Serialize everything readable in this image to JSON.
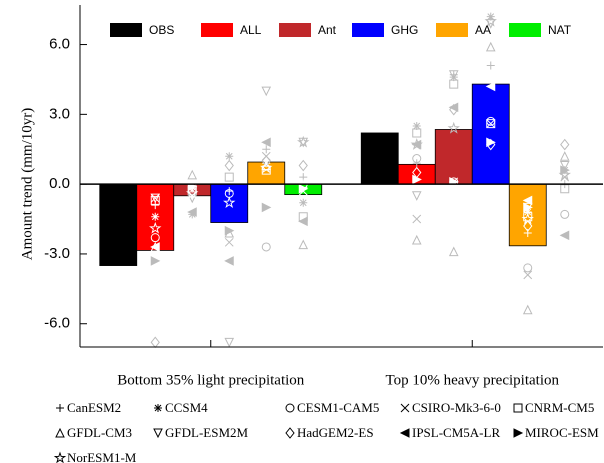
{
  "chart_data": {
    "type": "bar",
    "y_label": "Amount trend (mm/10yr)",
    "categories": [
      "Bottom 35% light precipitation",
      "Top 10% heavy precipitation"
    ],
    "ylim": [
      -7,
      7.7
    ],
    "yticks": [
      {
        "value": 6,
        "label": "6.0"
      },
      {
        "value": 3,
        "label": "3.0"
      },
      {
        "value": 0,
        "label": "0.0"
      },
      {
        "value": -3,
        "label": "-3.0"
      },
      {
        "value": -6,
        "label": "-6.0"
      }
    ],
    "series": [
      {
        "name": "OBS",
        "color": "#000000",
        "values": [
          -3.5,
          2.2
        ]
      },
      {
        "name": "ALL",
        "color": "#ff0000",
        "values": [
          -2.85,
          0.85
        ]
      },
      {
        "name": "Ant",
        "color": "#c0282b",
        "values": [
          -0.5,
          2.35
        ]
      },
      {
        "name": "GHG",
        "color": "#0000ff",
        "values": [
          -1.65,
          4.3
        ]
      },
      {
        "name": "AA",
        "color": "#ffa500",
        "values": [
          0.95,
          -2.65
        ]
      },
      {
        "name": "NAT",
        "color": "#00ee00",
        "values": [
          -0.45,
          null
        ]
      }
    ],
    "model_color": "#bbbbbb",
    "models": [
      {
        "name": "CanESM2",
        "marker": "+",
        "values": [
          [
            -0.9,
            -0.2,
            -0.3,
            1.5,
            0.3
          ],
          [
            0.9,
            4.7,
            5.1,
            -2.1,
            0.0
          ]
        ]
      },
      {
        "name": "CCSM4",
        "marker": "*",
        "values": [
          [
            -1.4,
            -1.3,
            1.2,
            0.9,
            -0.8
          ],
          [
            2.5,
            4.6,
            7.2,
            -1.2,
            0.6
          ]
        ]
      },
      {
        "name": "CESM1-CAM5",
        "marker": "o",
        "values": [
          [
            -2.3,
            -0.1,
            -0.4,
            -2.7,
            0.0
          ],
          [
            1.1,
            0.1,
            2.7,
            -3.6,
            -1.3
          ]
        ]
      },
      {
        "name": "CSIRO-Mk3-6-0",
        "marker": "x",
        "values": [
          [
            -0.6,
            -0.5,
            -2.5,
            1.2,
            -0.3
          ],
          [
            -1.5,
            0.1,
            2.6,
            -3.9,
            0.3
          ]
        ]
      },
      {
        "name": "CNRM-CM5",
        "marker": "s",
        "values": [
          [
            -0.7,
            -0.3,
            0.3,
            0.6,
            -1.4
          ],
          [
            2.2,
            4.3,
            2.6,
            -1.4,
            -0.2
          ]
        ]
      },
      {
        "name": "GFDL-CM3",
        "marker": "^",
        "values": [
          [
            -2.7,
            0.4,
            -2.1,
            0.8,
            -2.6
          ],
          [
            -2.4,
            -2.9,
            5.9,
            -5.4,
            1.2
          ]
        ]
      },
      {
        "name": "GFDL-ESM2M",
        "marker": "v",
        "values": [
          [
            -0.6,
            -0.6,
            -6.8,
            4.0,
            1.8
          ],
          [
            -0.5,
            4.7,
            6.9,
            -1.0,
            0.8
          ]
        ]
      },
      {
        "name": "HadGEM2-ES",
        "marker": "d",
        "values": [
          [
            -6.8,
            -0.3,
            0.8,
            1.0,
            0.8
          ],
          [
            0.5,
            3.2,
            1.7,
            -1.8,
            1.7
          ]
        ]
      },
      {
        "name": "IPSL-CM5A-LR",
        "marker": "<",
        "values": [
          [
            -2.7,
            -1.2,
            -3.3,
            1.8,
            -1.6
          ],
          [
            1.7,
            3.3,
            4.2,
            -0.7,
            -2.2
          ]
        ]
      },
      {
        "name": "MIROC-ESM",
        "marker": ">",
        "values": [
          [
            -3.3,
            -0.1,
            -2.0,
            -1.0,
            -0.2
          ],
          [
            0.2,
            0.1,
            1.8,
            -1.0,
            0.6
          ]
        ]
      },
      {
        "name": "NorESM1-M",
        "marker": "star",
        "values": [
          [
            -1.9,
            -0.4,
            -0.8,
            0.7,
            1.8
          ],
          [
            1.7,
            2.4,
            7.0,
            -1.5,
            0.4
          ]
        ]
      }
    ]
  }
}
